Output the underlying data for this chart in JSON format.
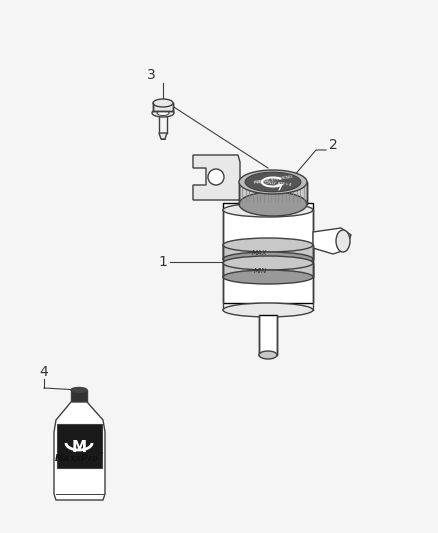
{
  "bg_color": "#f5f5f5",
  "fig_width": 4.38,
  "fig_height": 5.33,
  "dpi": 100,
  "label_color": "#333333",
  "lc": "#404040",
  "lw": 1.0,
  "label_1": "1",
  "label_2": "2",
  "label_3": "3",
  "label_4": "4"
}
